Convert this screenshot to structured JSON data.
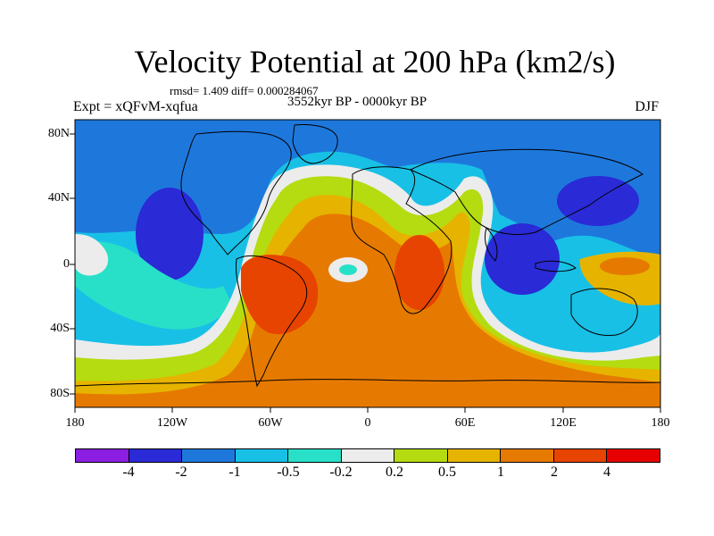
{
  "title": "Velocity Potential at 200 hPa (km2/s)",
  "stats": "rmsd= 1.409 diff= 0.000284067",
  "experiment": "Expt = xQFvM-xqfua",
  "period": "3552kyr BP - 0000kyr BP",
  "season": "DJF",
  "x_ticks": [
    "180",
    "120W",
    "60W",
    "0",
    "60E",
    "120E",
    "180"
  ],
  "y_ticks": [
    "80N",
    "40N",
    "0",
    "40S",
    "80S"
  ],
  "colorbar": {
    "labels": [
      "-4",
      "-2",
      "-1",
      "-0.5",
      "-0.2",
      "0.2",
      "0.5",
      "1",
      "2",
      "4"
    ],
    "colors": [
      "#8b1ee0",
      "#2a2ad6",
      "#1e78dc",
      "#18c0e6",
      "#28e0c8",
      "#ececec",
      "#b4dc10",
      "#e6b400",
      "#e67a00",
      "#e64400",
      "#e60000"
    ]
  }
}
